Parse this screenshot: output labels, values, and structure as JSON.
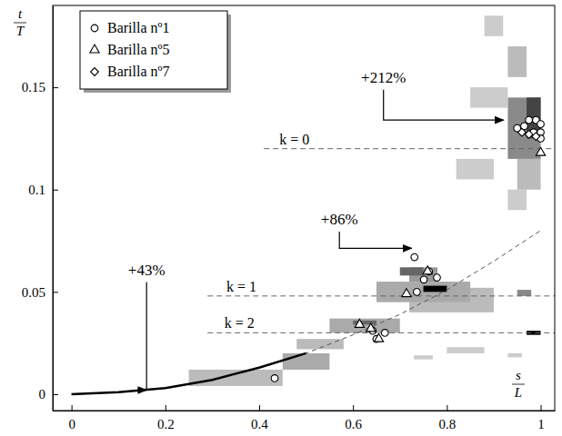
{
  "chart_data": {
    "type": "scatter",
    "xlabel": {
      "numerator": "s",
      "denominator": "L"
    },
    "ylabel": {
      "numerator": "t",
      "denominator": "T"
    },
    "xlim": [
      -0.04,
      1.03
    ],
    "ylim": [
      -0.008,
      0.19
    ],
    "xticks": [
      0,
      0.2,
      0.4,
      0.6,
      0.8,
      1
    ],
    "yticks": [
      0,
      0.05,
      0.1,
      0.15
    ],
    "legend": "upper left",
    "series": [
      {
        "name": "Barilla nº1",
        "type": "scatter",
        "marker": "circle",
        "color": "#000000",
        "x": [
          0.433,
          0.731,
          0.751,
          0.762,
          0.779,
          0.736,
          0.642,
          0.668,
          0.65,
          0.95,
          0.965,
          0.975,
          0.99,
          1.0,
          1.0,
          1.0,
          0.985
        ],
        "values": [
          0.0078,
          0.067,
          0.056,
          0.06,
          0.057,
          0.05,
          0.031,
          0.03,
          0.027,
          0.13,
          0.131,
          0.134,
          0.134,
          0.132,
          0.128,
          0.125,
          0.128
        ]
      },
      {
        "name": "Barilla nº5",
        "type": "scatter",
        "marker": "triangle",
        "color": "#000000",
        "x": [
          0.714,
          0.759,
          0.614,
          0.638,
          0.655,
          1.0
        ],
        "values": [
          0.049,
          0.06,
          0.034,
          0.032,
          0.027,
          0.118
        ]
      },
      {
        "name": "Barilla nº7",
        "type": "scatter",
        "marker": "diamond",
        "color": "#000000",
        "x": [
          0.96,
          0.975,
          0.99
        ],
        "values": [
          0.128,
          0.127,
          0.126
        ]
      },
      {
        "type": "line",
        "line_style": "dashed",
        "color": "#555555",
        "x": [
          0,
          0.1,
          0.2,
          0.3,
          0.4,
          0.5,
          0.6,
          0.7,
          0.8,
          0.9,
          1.0
        ],
        "values": [
          0,
          0.001,
          0.003,
          0.007,
          0.013,
          0.02,
          0.029,
          0.039,
          0.051,
          0.065,
          0.08
        ]
      },
      {
        "type": "line",
        "line_style": "solid",
        "color": "#000000",
        "x": [
          0,
          0.1,
          0.2,
          0.3,
          0.4,
          0.5
        ],
        "values": [
          0,
          0.001,
          0.003,
          0.007,
          0.013,
          0.02
        ]
      }
    ],
    "reference_lines": [
      {
        "label": "k = 0",
        "y": 0.12,
        "x": [
          0.41,
          1.03
        ],
        "label_x": 0.443
      },
      {
        "label": "k = 1",
        "y": 0.048,
        "x": [
          0.29,
          1.03
        ],
        "label_x": 0.33
      },
      {
        "label": "k = 2",
        "y": 0.03,
        "x": [
          0.29,
          1.03
        ],
        "label_x": 0.326
      }
    ],
    "regions": [
      {
        "x": [
          0.93,
          1.0
        ],
        "y": [
          0.115,
          0.145
        ],
        "color": "#8a8a8a"
      },
      {
        "x": [
          0.97,
          1.0
        ],
        "y": [
          0.125,
          0.145
        ],
        "color": "#444444"
      },
      {
        "x": [
          0.85,
          0.93
        ],
        "y": [
          0.14,
          0.15
        ],
        "color": "#cccccc"
      },
      {
        "x": [
          0.82,
          0.9
        ],
        "y": [
          0.105,
          0.115
        ],
        "color": "#cccccc"
      },
      {
        "x": [
          0.88,
          0.92
        ],
        "y": [
          0.175,
          0.185
        ],
        "color": "#cccccc"
      },
      {
        "x": [
          0.93,
          0.97
        ],
        "y": [
          0.155,
          0.17
        ],
        "color": "#bbbbbb"
      },
      {
        "x": [
          0.93,
          0.97
        ],
        "y": [
          0.09,
          0.1
        ],
        "color": "#cccccc"
      },
      {
        "x": [
          0.95,
          1.0
        ],
        "y": [
          0.1,
          0.115
        ],
        "color": "#bbbbbb"
      },
      {
        "x": [
          0.72,
          0.9
        ],
        "y": [
          0.04,
          0.052
        ],
        "color": "#bbbbbb"
      },
      {
        "x": [
          0.65,
          0.85
        ],
        "y": [
          0.045,
          0.055
        ],
        "color": "#aaaaaa"
      },
      {
        "x": [
          0.72,
          0.78
        ],
        "y": [
          0.055,
          0.062
        ],
        "color": "#999999"
      },
      {
        "x": [
          0.7,
          0.75
        ],
        "y": [
          0.058,
          0.062
        ],
        "color": "#666666"
      },
      {
        "x": [
          0.75,
          0.8
        ],
        "y": [
          0.05,
          0.053
        ],
        "color": "#000000"
      },
      {
        "x": [
          0.55,
          0.7
        ],
        "y": [
          0.03,
          0.037
        ],
        "color": "#aaaaaa"
      },
      {
        "x": [
          0.6,
          0.65
        ],
        "y": [
          0.034,
          0.036
        ],
        "color": "#666666"
      },
      {
        "x": [
          0.25,
          0.45
        ],
        "y": [
          0.004,
          0.012
        ],
        "color": "#bbbbbb"
      },
      {
        "x": [
          0.45,
          0.55
        ],
        "y": [
          0.012,
          0.02
        ],
        "color": "#aaaaaa"
      },
      {
        "x": [
          0.48,
          0.58
        ],
        "y": [
          0.022,
          0.027
        ],
        "color": "#bbbbbb"
      },
      {
        "x": [
          0.8,
          0.88
        ],
        "y": [
          0.02,
          0.023
        ],
        "color": "#cccccc"
      },
      {
        "x": [
          0.73,
          0.77
        ],
        "y": [
          0.017,
          0.019
        ],
        "color": "#cccccc"
      },
      {
        "x": [
          0.95,
          0.98
        ],
        "y": [
          0.048,
          0.051
        ],
        "color": "#888888"
      },
      {
        "x": [
          0.93,
          0.96
        ],
        "y": [
          0.018,
          0.02
        ],
        "color": "#cccccc"
      },
      {
        "x": [
          0.97,
          1.0
        ],
        "y": [
          0.029,
          0.031
        ],
        "color": "#000000"
      }
    ],
    "annotations": [
      {
        "text": "+43%",
        "xy": [
          0.16,
          0.002
        ],
        "xytext": [
          0.16,
          0.061
        ]
      },
      {
        "text": "+86%",
        "xy": [
          0.725,
          0.0713
        ],
        "xytext": [
          0.571,
          0.0857
        ]
      },
      {
        "text": "+212%",
        "xy": [
          0.921,
          0.134
        ],
        "xytext": [
          0.665,
          0.155
        ]
      }
    ]
  }
}
